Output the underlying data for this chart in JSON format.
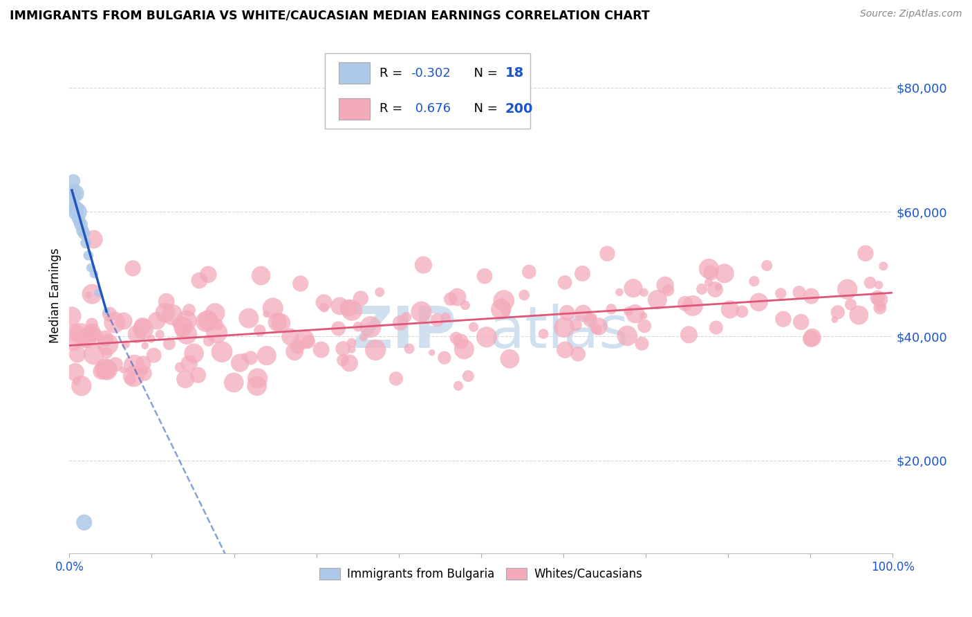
{
  "title": "IMMIGRANTS FROM BULGARIA VS WHITE/CAUCASIAN MEDIAN EARNINGS CORRELATION CHART",
  "source": "Source: ZipAtlas.com",
  "ylabel": "Median Earnings",
  "r_blue": -0.302,
  "n_blue": 18,
  "r_pink": 0.676,
  "n_pink": 200,
  "blue_color": "#adc8e8",
  "blue_line_color": "#2255bb",
  "pink_color": "#f4aabb",
  "pink_line_color": "#dd5577",
  "legend1_label": "Immigrants from Bulgaria",
  "legend2_label": "Whites/Caucasians",
  "blue_label_color": "#1a55cc",
  "ytick_color": "#1a55cc",
  "xtick_color": "#1a55cc",
  "watermark_color": "#d0e0f0",
  "grid_color": "#cccccc",
  "figsize": [
    14.06,
    8.92
  ],
  "dpi": 100,
  "ylim_low": 5000,
  "ylim_high": 88000,
  "xlim_low": 0,
  "xlim_high": 100
}
